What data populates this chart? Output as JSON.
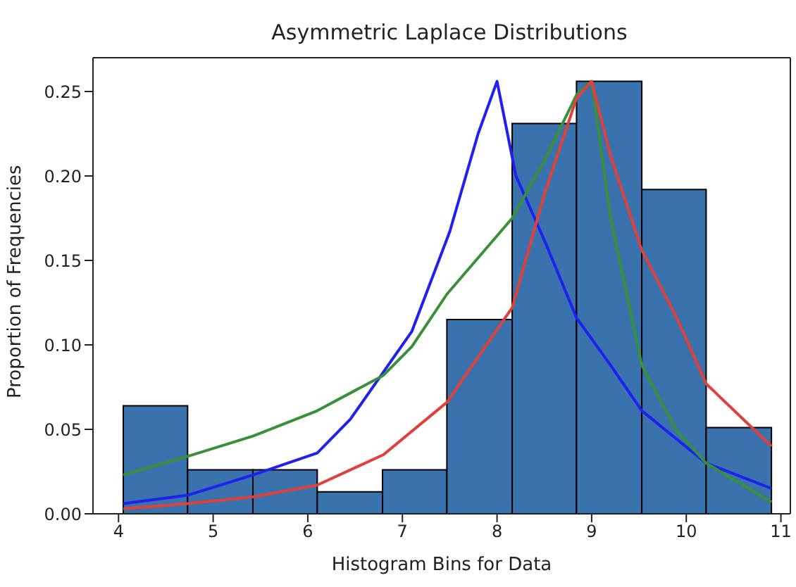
{
  "chart_data": {
    "type": "histogram",
    "title": "Asymmetric Laplace Distributions",
    "xlabel": "Histogram Bins for Data",
    "ylabel": "Proportion of Frequencies",
    "bins": [
      4.05,
      4.73,
      5.42,
      6.1,
      6.79,
      7.47,
      8.16,
      8.84,
      9.53,
      10.21,
      10.9
    ],
    "values": [
      0.064,
      0.026,
      0.026,
      0.013,
      0.026,
      0.115,
      0.231,
      0.256,
      0.192,
      0.051
    ],
    "color": "#3a72ad",
    "series": [
      {
        "type": "line",
        "color": "#2020f0",
        "x": [
          4.05,
          4.73,
          5.42,
          6.1,
          6.45,
          7.1,
          7.5,
          7.8,
          8.0,
          8.2,
          8.5,
          8.84,
          9.2,
          9.53,
          10.21,
          10.9
        ],
        "values": [
          0.006,
          0.011,
          0.023,
          0.036,
          0.056,
          0.108,
          0.167,
          0.225,
          0.256,
          0.2,
          0.162,
          0.116,
          0.088,
          0.061,
          0.03,
          0.015
        ]
      },
      {
        "type": "line",
        "color": "#3a8f3a",
        "x": [
          4.05,
          4.73,
          5.42,
          6.1,
          6.8,
          7.1,
          7.47,
          8.16,
          8.5,
          8.84,
          9.0,
          9.2,
          9.53,
          9.9,
          10.21,
          10.9
        ],
        "values": [
          0.023,
          0.034,
          0.046,
          0.061,
          0.082,
          0.099,
          0.13,
          0.175,
          0.209,
          0.248,
          0.256,
          0.175,
          0.088,
          0.049,
          0.03,
          0.007
        ]
      },
      {
        "type": "line",
        "color": "#e0403a",
        "x": [
          4.05,
          4.73,
          5.42,
          6.1,
          6.8,
          7.47,
          8.16,
          8.5,
          8.84,
          9.0,
          9.2,
          9.53,
          9.9,
          10.21,
          10.9
        ],
        "values": [
          0.003,
          0.006,
          0.01,
          0.017,
          0.035,
          0.066,
          0.122,
          0.189,
          0.246,
          0.256,
          0.212,
          0.156,
          0.116,
          0.077,
          0.04
        ]
      }
    ],
    "xlim": [
      3.73,
      11.1
    ],
    "ylim": [
      0,
      0.27
    ],
    "xticks": [
      4,
      5,
      6,
      7,
      8,
      9,
      10,
      11
    ],
    "yticks": [
      {
        "value": 0,
        "label": "0.00"
      },
      {
        "value": 0.05,
        "label": "0.05"
      },
      {
        "value": 0.1,
        "label": "0.10"
      },
      {
        "value": 0.15,
        "label": "0.15"
      },
      {
        "value": 0.2,
        "label": "0.20"
      },
      {
        "value": 0.25,
        "label": "0.25"
      }
    ],
    "grid": false,
    "marker": "none",
    "line_style": "solid"
  }
}
